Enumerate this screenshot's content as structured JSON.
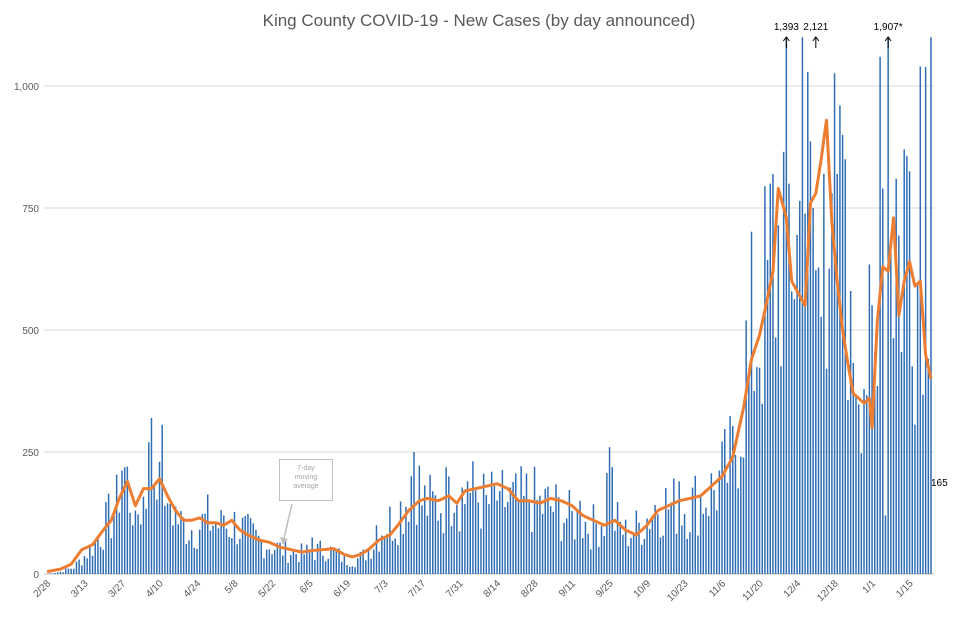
{
  "chart_data": {
    "type": "bar",
    "title": "King County COVID-19 - New Cases (by day announced)",
    "start_date": "2020-02-28",
    "days": 331,
    "ylim": [
      0,
      1100
    ],
    "yticks": [
      {
        "value": 0,
        "label": "0"
      },
      {
        "value": 250,
        "label": "250"
      },
      {
        "value": 500,
        "label": "500"
      },
      {
        "value": 750,
        "label": "750"
      },
      {
        "value": 1000,
        "label": "1,000"
      }
    ],
    "xticks": [
      "2/28",
      "3/13",
      "3/27",
      "4/10",
      "4/24",
      "5/8",
      "5/22",
      "6/5",
      "6/19",
      "7/3",
      "7/17",
      "7/31",
      "8/14",
      "8/28",
      "9/11",
      "9/25",
      "10/9",
      "10/23",
      "11/6",
      "11/20",
      "12/4",
      "12/18",
      "1/1",
      "1/15"
    ],
    "grid": true,
    "series": [
      {
        "kind": "bar",
        "color": "#2e6db4"
      },
      {
        "kind": "line",
        "name": "7-day moving average",
        "color": "#ed7d31"
      }
    ],
    "daily_anchors": [
      [
        0,
        0
      ],
      [
        5,
        5
      ],
      [
        10,
        15
      ],
      [
        14,
        40
      ],
      [
        18,
        70
      ],
      [
        22,
        110
      ],
      [
        26,
        150
      ],
      [
        28,
        250
      ],
      [
        31,
        175
      ],
      [
        34,
        140
      ],
      [
        37,
        175
      ],
      [
        39,
        270
      ],
      [
        41,
        195
      ],
      [
        43,
        230
      ],
      [
        46,
        160
      ],
      [
        50,
        110
      ],
      [
        55,
        100
      ],
      [
        60,
        120
      ],
      [
        65,
        105
      ],
      [
        70,
        110
      ],
      [
        75,
        90
      ],
      [
        80,
        70
      ],
      [
        85,
        60
      ],
      [
        90,
        50
      ],
      [
        95,
        45
      ],
      [
        100,
        50
      ],
      [
        104,
        55
      ],
      [
        108,
        45
      ],
      [
        112,
        30
      ],
      [
        115,
        30
      ],
      [
        118,
        40
      ],
      [
        122,
        70
      ],
      [
        126,
        110
      ],
      [
        130,
        120
      ],
      [
        134,
        165
      ],
      [
        137,
        250
      ],
      [
        140,
        160
      ],
      [
        144,
        150
      ],
      [
        148,
        160
      ],
      [
        152,
        200
      ],
      [
        156,
        165
      ],
      [
        160,
        180
      ],
      [
        164,
        150
      ],
      [
        168,
        170
      ],
      [
        172,
        160
      ],
      [
        176,
        155
      ],
      [
        180,
        170
      ],
      [
        184,
        150
      ],
      [
        188,
        150
      ],
      [
        192,
        135
      ],
      [
        196,
        120
      ],
      [
        200,
        115
      ],
      [
        204,
        105
      ],
      [
        208,
        125
      ],
      [
        210,
        260
      ],
      [
        212,
        120
      ],
      [
        216,
        90
      ],
      [
        220,
        100
      ],
      [
        224,
        125
      ],
      [
        228,
        160
      ],
      [
        232,
        150
      ],
      [
        236,
        150
      ],
      [
        240,
        150
      ],
      [
        244,
        170
      ],
      [
        248,
        180
      ],
      [
        252,
        210
      ],
      [
        256,
        250
      ],
      [
        259,
        370
      ],
      [
        262,
        500
      ],
      [
        265,
        540
      ],
      [
        268,
        600
      ],
      [
        272,
        680
      ],
      [
        276,
        800
      ],
      [
        280,
        710
      ],
      [
        283,
        900
      ],
      [
        286,
        700
      ],
      [
        288,
        610
      ],
      [
        291,
        720
      ],
      [
        294,
        880
      ],
      [
        296,
        1000
      ],
      [
        298,
        760
      ],
      [
        300,
        580
      ],
      [
        303,
        510
      ],
      [
        306,
        470
      ],
      [
        309,
        440
      ],
      [
        312,
        320
      ],
      [
        313,
        100
      ],
      [
        314,
        1060
      ],
      [
        316,
        710
      ],
      [
        318,
        700
      ],
      [
        320,
        690
      ],
      [
        322,
        900
      ],
      [
        324,
        680
      ],
      [
        326,
        620
      ],
      [
        328,
        1000
      ],
      [
        331,
        430
      ],
      [
        334,
        270
      ],
      [
        336,
        165
      ]
    ],
    "daily_overrides": [
      [
        30,
        220
      ],
      [
        33,
        130
      ],
      [
        38,
        270
      ],
      [
        42,
        230
      ],
      [
        45,
        145
      ],
      [
        66,
        120
      ],
      [
        99,
        75
      ],
      [
        123,
        100
      ],
      [
        137,
        250
      ],
      [
        150,
        200
      ],
      [
        157,
        190
      ],
      [
        169,
        170
      ],
      [
        178,
        160
      ],
      [
        199,
        150
      ],
      [
        210,
        260
      ],
      [
        236,
        190
      ],
      [
        262,
        410
      ],
      [
        270,
        800
      ],
      [
        271,
        820
      ],
      [
        276,
        1100
      ],
      [
        282,
        1100
      ],
      [
        286,
        750
      ],
      [
        290,
        820
      ],
      [
        293,
        780
      ],
      [
        295,
        820
      ],
      [
        296,
        960
      ],
      [
        297,
        900
      ],
      [
        298,
        850
      ],
      [
        300,
        580
      ],
      [
        311,
        1060
      ],
      [
        312,
        790
      ],
      [
        313,
        120
      ],
      [
        314,
        1100
      ],
      [
        317,
        810
      ],
      [
        320,
        870
      ],
      [
        326,
        1040
      ],
      [
        330,
        1100
      ],
      [
        332,
        520
      ],
      [
        333,
        410
      ],
      [
        336,
        165
      ]
    ],
    "moving_average_anchors": [
      [
        0,
        5
      ],
      [
        5,
        10
      ],
      [
        9,
        20
      ],
      [
        13,
        50
      ],
      [
        17,
        60
      ],
      [
        21,
        90
      ],
      [
        24,
        110
      ],
      [
        27,
        155
      ],
      [
        30,
        190
      ],
      [
        33,
        140
      ],
      [
        36,
        175
      ],
      [
        39,
        175
      ],
      [
        42,
        195
      ],
      [
        45,
        160
      ],
      [
        48,
        130
      ],
      [
        51,
        110
      ],
      [
        54,
        110
      ],
      [
        57,
        115
      ],
      [
        60,
        105
      ],
      [
        63,
        105
      ],
      [
        66,
        100
      ],
      [
        69,
        110
      ],
      [
        72,
        90
      ],
      [
        75,
        80
      ],
      [
        79,
        70
      ],
      [
        83,
        65
      ],
      [
        87,
        55
      ],
      [
        91,
        50
      ],
      [
        95,
        45
      ],
      [
        99,
        48
      ],
      [
        103,
        50
      ],
      [
        107,
        52
      ],
      [
        111,
        40
      ],
      [
        114,
        35
      ],
      [
        117,
        40
      ],
      [
        120,
        50
      ],
      [
        124,
        70
      ],
      [
        128,
        80
      ],
      [
        131,
        100
      ],
      [
        135,
        130
      ],
      [
        139,
        150
      ],
      [
        142,
        155
      ],
      [
        146,
        150
      ],
      [
        150,
        160
      ],
      [
        153,
        145
      ],
      [
        156,
        170
      ],
      [
        160,
        175
      ],
      [
        164,
        180
      ],
      [
        168,
        185
      ],
      [
        172,
        175
      ],
      [
        176,
        150
      ],
      [
        180,
        150
      ],
      [
        184,
        145
      ],
      [
        188,
        155
      ],
      [
        192,
        150
      ],
      [
        196,
        140
      ],
      [
        200,
        120
      ],
      [
        204,
        110
      ],
      [
        208,
        100
      ],
      [
        212,
        110
      ],
      [
        216,
        90
      ],
      [
        220,
        80
      ],
      [
        224,
        100
      ],
      [
        228,
        130
      ],
      [
        232,
        140
      ],
      [
        236,
        150
      ],
      [
        240,
        155
      ],
      [
        244,
        160
      ],
      [
        248,
        180
      ],
      [
        252,
        200
      ],
      [
        256,
        240
      ],
      [
        260,
        340
      ],
      [
        263,
        440
      ],
      [
        266,
        490
      ],
      [
        268,
        540
      ],
      [
        271,
        620
      ],
      [
        273,
        790
      ],
      [
        276,
        730
      ],
      [
        278,
        600
      ],
      [
        280,
        580
      ],
      [
        283,
        550
      ],
      [
        285,
        760
      ],
      [
        287,
        780
      ],
      [
        289,
        850
      ],
      [
        291,
        930
      ],
      [
        293,
        720
      ],
      [
        295,
        600
      ],
      [
        297,
        500
      ],
      [
        299,
        430
      ],
      [
        301,
        370
      ],
      [
        303,
        360
      ],
      [
        305,
        350
      ],
      [
        307,
        360
      ],
      [
        308,
        300
      ],
      [
        310,
        520
      ],
      [
        312,
        630
      ],
      [
        314,
        620
      ],
      [
        316,
        730
      ],
      [
        318,
        530
      ],
      [
        320,
        600
      ],
      [
        322,
        640
      ],
      [
        324,
        590
      ],
      [
        326,
        600
      ],
      [
        328,
        450
      ],
      [
        330,
        400
      ],
      [
        332,
        410
      ],
      [
        334,
        275
      ],
      [
        336,
        390
      ]
    ],
    "annotations": [
      {
        "text": "1,393",
        "day": 276
      },
      {
        "text": "2,121",
        "day": 287
      },
      {
        "text": "1,907*",
        "day": 314
      }
    ],
    "callout": {
      "text": "7-day\nmoving\naverage"
    },
    "end_label": "165"
  }
}
